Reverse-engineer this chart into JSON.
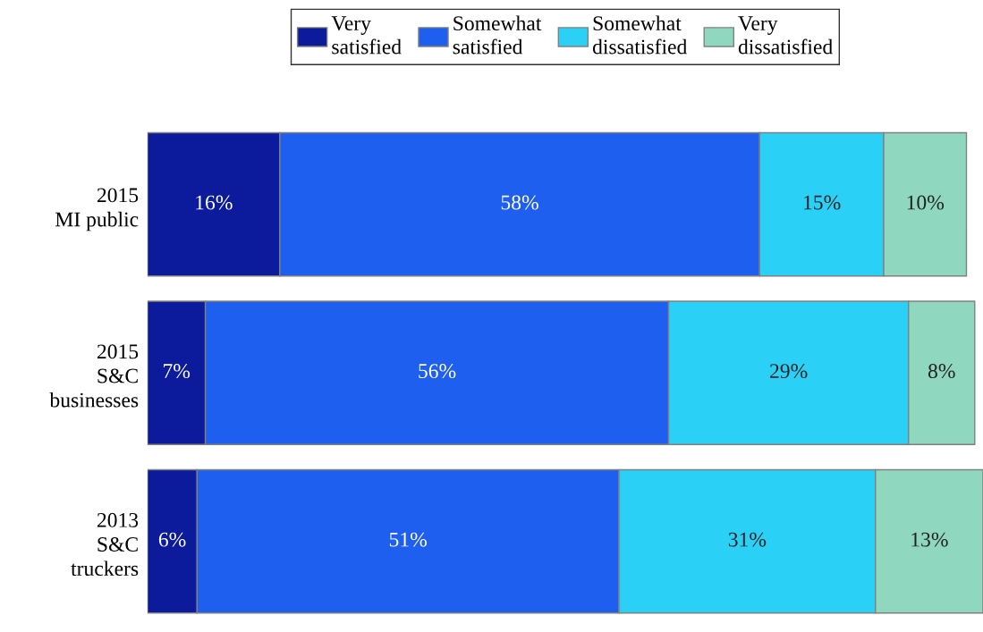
{
  "chart_data": {
    "type": "bar",
    "orientation": "horizontal",
    "stacked": true,
    "legend": "top",
    "grid": false,
    "tick_labels": "y",
    "categories": [
      "2015\nMI public",
      "2015\nS&C\nbusinesses",
      "2013\nS&C\ntruckers"
    ],
    "series": [
      {
        "name": "Very\nsatisfied",
        "color": "#0c1a9c",
        "values": [
          16,
          7,
          6
        ],
        "value_labels": [
          "16%",
          "7%",
          "6%"
        ]
      },
      {
        "name": "Somewhat\nsatisfied",
        "color": "#1f5ff0",
        "values": [
          58,
          56,
          51
        ],
        "value_labels": [
          "58%",
          "56%",
          "51%"
        ]
      },
      {
        "name": "Somewhat\ndissatisfied",
        "color": "#2bd0f7",
        "values": [
          15,
          29,
          31
        ],
        "value_labels": [
          "15%",
          "29%",
          "31%"
        ]
      },
      {
        "name": "Very\ndissatisfied",
        "color": "#8fd8bf",
        "values": [
          10,
          8,
          13
        ],
        "value_labels": [
          "10%",
          "8%",
          "13%"
        ]
      }
    ]
  }
}
